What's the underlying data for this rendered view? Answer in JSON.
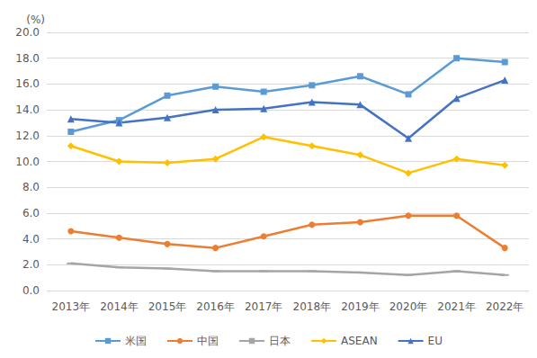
{
  "chart_data": {
    "type": "line",
    "ylabel": "(%)",
    "categories": [
      "2013年",
      "2014年",
      "2015年",
      "2016年",
      "2017年",
      "2018年",
      "2019年",
      "2020年",
      "2021年",
      "2022年"
    ],
    "series": [
      {
        "name": "米国",
        "color": "#5B9BD5",
        "marker": "square",
        "values": [
          12.3,
          13.2,
          15.1,
          15.8,
          15.4,
          15.9,
          16.6,
          15.2,
          18.0,
          17.7
        ]
      },
      {
        "name": "中国",
        "color": "#ED7D31",
        "marker": "circle",
        "values": [
          4.6,
          4.1,
          3.6,
          3.3,
          4.2,
          5.1,
          5.3,
          5.8,
          5.8,
          3.3
        ]
      },
      {
        "name": "日本",
        "color": "#A5A5A5",
        "marker": "dash",
        "values": [
          2.1,
          1.8,
          1.7,
          1.5,
          1.5,
          1.5,
          1.4,
          1.2,
          1.5,
          1.2
        ]
      },
      {
        "name": "ASEAN",
        "color": "#FFC000",
        "marker": "diamond",
        "values": [
          11.2,
          10.0,
          9.9,
          10.2,
          11.9,
          11.2,
          10.5,
          9.1,
          10.2,
          9.7
        ]
      },
      {
        "name": "EU",
        "color": "#4472C4",
        "marker": "triangle",
        "values": [
          13.3,
          13.0,
          13.4,
          14.0,
          14.1,
          14.6,
          14.4,
          11.8,
          14.9,
          16.3
        ]
      }
    ],
    "ylim": [
      0,
      20
    ],
    "yticks": [
      {
        "value": 0,
        "label": "0.0"
      },
      {
        "value": 2,
        "label": "2.0"
      },
      {
        "value": 4,
        "label": "4.0"
      },
      {
        "value": 6,
        "label": "6.0"
      },
      {
        "value": 8,
        "label": "8.0"
      },
      {
        "value": 10,
        "label": "10.0"
      },
      {
        "value": 12,
        "label": "12.0"
      },
      {
        "value": 14,
        "label": "14.0"
      },
      {
        "value": 16,
        "label": "16.0"
      },
      {
        "value": 18,
        "label": "18.0"
      },
      {
        "value": 20,
        "label": "20.0"
      }
    ],
    "grid": true,
    "legend": "bottom"
  }
}
